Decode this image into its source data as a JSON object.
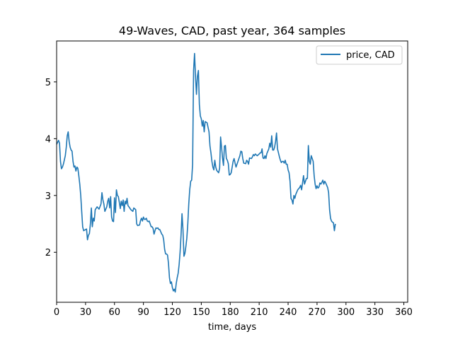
{
  "chart_data": {
    "type": "line",
    "title": "49-Waves, CAD, past year, 364 samples",
    "xlabel": "time, days",
    "ylabel": "",
    "xlim": [
      0,
      364
    ],
    "ylim": [
      1.12,
      5.72
    ],
    "x_ticks": [
      0,
      30,
      60,
      90,
      120,
      150,
      180,
      210,
      240,
      270,
      300,
      330,
      360
    ],
    "y_ticks": [
      2,
      3,
      4,
      5
    ],
    "grid": false,
    "legend_position": "top-right",
    "series": [
      {
        "name": "price, CAD",
        "color": "#1f77b4",
        "points": [
          [
            0,
            3.9
          ],
          [
            2,
            3.97
          ],
          [
            3,
            3.92
          ],
          [
            4,
            3.6
          ],
          [
            5,
            3.47
          ],
          [
            6,
            3.5
          ],
          [
            7,
            3.55
          ],
          [
            9,
            3.7
          ],
          [
            10,
            3.85
          ],
          [
            11,
            4.05
          ],
          [
            12,
            4.12
          ],
          [
            13,
            3.95
          ],
          [
            14,
            3.85
          ],
          [
            15,
            3.8
          ],
          [
            16,
            3.78
          ],
          [
            17,
            3.6
          ],
          [
            18,
            3.5
          ],
          [
            19,
            3.52
          ],
          [
            20,
            3.43
          ],
          [
            21,
            3.5
          ],
          [
            22,
            3.48
          ],
          [
            23,
            3.35
          ],
          [
            24,
            3.2
          ],
          [
            25,
            3.0
          ],
          [
            26,
            2.72
          ],
          [
            27,
            2.45
          ],
          [
            28,
            2.38
          ],
          [
            30,
            2.4
          ],
          [
            31,
            2.41
          ],
          [
            32,
            2.22
          ],
          [
            33,
            2.3
          ],
          [
            34,
            2.33
          ],
          [
            35,
            2.5
          ],
          [
            36,
            2.78
          ],
          [
            37,
            2.45
          ],
          [
            38,
            2.6
          ],
          [
            39,
            2.55
          ],
          [
            40,
            2.75
          ],
          [
            42,
            2.8
          ],
          [
            44,
            2.76
          ],
          [
            46,
            2.85
          ],
          [
            47,
            3.05
          ],
          [
            48,
            2.92
          ],
          [
            49,
            2.85
          ],
          [
            50,
            2.72
          ],
          [
            52,
            2.8
          ],
          [
            53,
            2.9
          ],
          [
            54,
            2.95
          ],
          [
            55,
            2.78
          ],
          [
            56,
            2.98
          ],
          [
            57,
            2.62
          ],
          [
            58,
            2.55
          ],
          [
            59,
            2.54
          ],
          [
            60,
            2.96
          ],
          [
            61,
            2.7
          ],
          [
            62,
            3.1
          ],
          [
            63,
            3.0
          ],
          [
            64,
            2.98
          ],
          [
            65,
            2.88
          ],
          [
            66,
            2.77
          ],
          [
            67,
            2.9
          ],
          [
            68,
            2.82
          ],
          [
            69,
            2.92
          ],
          [
            70,
            2.72
          ],
          [
            71,
            2.9
          ],
          [
            72,
            2.85
          ],
          [
            73,
            2.95
          ],
          [
            74,
            2.82
          ],
          [
            75,
            2.8
          ],
          [
            77,
            2.75
          ],
          [
            79,
            2.72
          ],
          [
            80,
            2.78
          ],
          [
            82,
            2.75
          ],
          [
            83,
            2.5
          ],
          [
            84,
            2.47
          ],
          [
            86,
            2.48
          ],
          [
            87,
            2.56
          ],
          [
            88,
            2.6
          ],
          [
            89,
            2.55
          ],
          [
            90,
            2.62
          ],
          [
            91,
            2.58
          ],
          [
            92,
            2.58
          ],
          [
            93,
            2.6
          ],
          [
            94,
            2.55
          ],
          [
            95,
            2.54
          ],
          [
            96,
            2.55
          ],
          [
            97,
            2.5
          ],
          [
            98,
            2.45
          ],
          [
            99,
            2.45
          ],
          [
            100,
            2.42
          ],
          [
            101,
            2.32
          ],
          [
            102,
            2.38
          ],
          [
            103,
            2.43
          ],
          [
            104,
            2.42
          ],
          [
            105,
            2.43
          ],
          [
            106,
            2.4
          ],
          [
            107,
            2.4
          ],
          [
            108,
            2.36
          ],
          [
            109,
            2.32
          ],
          [
            110,
            2.3
          ],
          [
            111,
            2.22
          ],
          [
            112,
            2.05
          ],
          [
            113,
            1.97
          ],
          [
            114,
            1.97
          ],
          [
            115,
            1.95
          ],
          [
            116,
            1.8
          ],
          [
            117,
            1.55
          ],
          [
            118,
            1.45
          ],
          [
            119,
            1.48
          ],
          [
            120,
            1.38
          ],
          [
            121,
            1.32
          ],
          [
            122,
            1.35
          ],
          [
            123,
            1.3
          ],
          [
            124,
            1.45
          ],
          [
            125,
            1.55
          ],
          [
            126,
            1.63
          ],
          [
            127,
            1.78
          ],
          [
            128,
            2.0
          ],
          [
            129,
            2.3
          ],
          [
            130,
            2.68
          ],
          [
            131,
            2.4
          ],
          [
            132,
            1.93
          ],
          [
            133,
            1.98
          ],
          [
            134,
            2.1
          ],
          [
            135,
            2.25
          ],
          [
            136,
            2.5
          ],
          [
            137,
            2.85
          ],
          [
            138,
            3.1
          ],
          [
            139,
            3.25
          ],
          [
            140,
            3.27
          ],
          [
            141,
            3.55
          ],
          [
            142,
            5.2
          ],
          [
            143,
            5.5
          ],
          [
            144,
            5.1
          ],
          [
            145,
            4.78
          ],
          [
            146,
            5.1
          ],
          [
            147,
            5.2
          ],
          [
            148,
            4.6
          ],
          [
            149,
            4.4
          ],
          [
            150,
            4.35
          ],
          [
            151,
            4.22
          ],
          [
            152,
            4.32
          ],
          [
            153,
            4.12
          ],
          [
            154,
            4.3
          ],
          [
            156,
            4.28
          ],
          [
            157,
            4.2
          ],
          [
            158,
            4.12
          ],
          [
            159,
            3.87
          ],
          [
            160,
            3.75
          ],
          [
            161,
            3.6
          ],
          [
            162,
            3.5
          ],
          [
            163,
            3.45
          ],
          [
            164,
            3.62
          ],
          [
            165,
            3.5
          ],
          [
            166,
            3.44
          ],
          [
            167,
            3.42
          ],
          [
            168,
            3.4
          ],
          [
            169,
            3.48
          ],
          [
            170,
            4.03
          ],
          [
            171,
            3.85
          ],
          [
            172,
            3.66
          ],
          [
            173,
            3.53
          ],
          [
            174,
            3.87
          ],
          [
            175,
            3.88
          ],
          [
            176,
            3.65
          ],
          [
            177,
            3.62
          ],
          [
            178,
            3.56
          ],
          [
            179,
            3.36
          ],
          [
            180,
            3.37
          ],
          [
            181,
            3.4
          ],
          [
            182,
            3.5
          ],
          [
            183,
            3.6
          ],
          [
            184,
            3.65
          ],
          [
            185,
            3.57
          ],
          [
            186,
            3.5
          ],
          [
            188,
            3.6
          ],
          [
            190,
            3.7
          ],
          [
            191,
            3.78
          ],
          [
            192,
            3.77
          ],
          [
            193,
            3.65
          ],
          [
            194,
            3.57
          ],
          [
            196,
            3.56
          ],
          [
            197,
            3.62
          ],
          [
            198,
            3.6
          ],
          [
            199,
            3.55
          ],
          [
            200,
            3.66
          ],
          [
            202,
            3.65
          ],
          [
            203,
            3.68
          ],
          [
            204,
            3.72
          ],
          [
            205,
            3.7
          ],
          [
            206,
            3.73
          ],
          [
            208,
            3.7
          ],
          [
            210,
            3.73
          ],
          [
            211,
            3.75
          ],
          [
            212,
            3.75
          ],
          [
            213,
            3.82
          ],
          [
            214,
            3.66
          ],
          [
            215,
            3.65
          ],
          [
            216,
            3.7
          ],
          [
            217,
            3.65
          ],
          [
            218,
            3.74
          ],
          [
            219,
            3.78
          ],
          [
            220,
            3.82
          ],
          [
            221,
            3.92
          ],
          [
            222,
            3.85
          ],
          [
            223,
            4.05
          ],
          [
            224,
            3.8
          ],
          [
            225,
            3.8
          ],
          [
            226,
            3.85
          ],
          [
            227,
            3.95
          ],
          [
            228,
            4.1
          ],
          [
            229,
            3.82
          ],
          [
            230,
            3.75
          ],
          [
            231,
            3.68
          ],
          [
            232,
            3.62
          ],
          [
            233,
            3.58
          ],
          [
            234,
            3.6
          ],
          [
            235,
            3.6
          ],
          [
            236,
            3.57
          ],
          [
            237,
            3.62
          ],
          [
            238,
            3.55
          ],
          [
            239,
            3.55
          ],
          [
            240,
            3.45
          ],
          [
            241,
            3.4
          ],
          [
            242,
            3.25
          ],
          [
            243,
            2.95
          ],
          [
            244,
            2.92
          ],
          [
            245,
            2.85
          ],
          [
            246,
            3.0
          ],
          [
            247,
            2.95
          ],
          [
            248,
            3.02
          ],
          [
            250,
            3.1
          ],
          [
            252,
            3.14
          ],
          [
            253,
            3.18
          ],
          [
            254,
            3.1
          ],
          [
            256,
            3.35
          ],
          [
            257,
            3.2
          ],
          [
            258,
            3.25
          ],
          [
            259,
            3.3
          ],
          [
            260,
            3.3
          ],
          [
            261,
            3.88
          ],
          [
            262,
            3.6
          ],
          [
            263,
            3.55
          ],
          [
            264,
            3.7
          ],
          [
            265,
            3.65
          ],
          [
            266,
            3.6
          ],
          [
            267,
            3.35
          ],
          [
            268,
            3.2
          ],
          [
            269,
            3.12
          ],
          [
            270,
            3.17
          ],
          [
            271,
            3.13
          ],
          [
            272,
            3.15
          ],
          [
            273,
            3.22
          ],
          [
            274,
            3.2
          ],
          [
            275,
            3.23
          ],
          [
            276,
            3.27
          ],
          [
            277,
            3.2
          ],
          [
            278,
            3.25
          ],
          [
            279,
            3.22
          ],
          [
            280,
            3.18
          ],
          [
            281,
            3.14
          ],
          [
            282,
            3.05
          ],
          [
            283,
            2.75
          ],
          [
            284,
            2.6
          ],
          [
            285,
            2.55
          ],
          [
            286,
            2.53
          ],
          [
            287,
            2.52
          ],
          [
            288,
            2.38
          ],
          [
            289,
            2.5
          ]
        ]
      }
    ]
  }
}
